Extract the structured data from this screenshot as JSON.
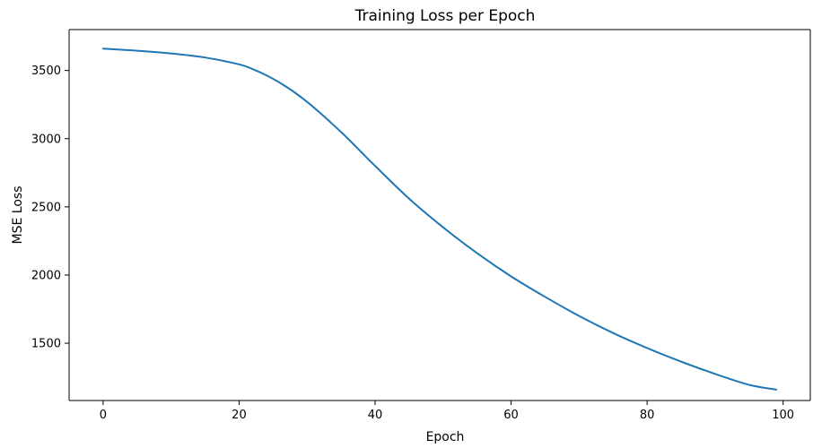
{
  "chart_data": {
    "type": "line",
    "title": "Training Loss per Epoch",
    "xlabel": "Epoch",
    "ylabel": "MSE Loss",
    "xlim": [
      -5,
      104
    ],
    "ylim": [
      1080,
      3800
    ],
    "xticks": [
      0,
      20,
      40,
      60,
      80,
      100
    ],
    "yticks": [
      1500,
      2000,
      2500,
      3000,
      3500
    ],
    "grid": false,
    "legend": "none",
    "series": [
      {
        "color": "#1f77b4",
        "x": [
          0,
          5,
          10,
          15,
          20,
          22,
          24,
          26,
          28,
          30,
          32,
          34,
          36,
          38,
          40,
          45,
          50,
          55,
          60,
          65,
          70,
          75,
          80,
          85,
          90,
          95,
          99
        ],
        "y": [
          3660,
          3645,
          3625,
          3595,
          3545,
          3510,
          3465,
          3410,
          3345,
          3270,
          3185,
          3095,
          3000,
          2900,
          2800,
          2560,
          2350,
          2160,
          1990,
          1840,
          1700,
          1575,
          1465,
          1365,
          1275,
          1195,
          1160
        ]
      }
    ]
  }
}
